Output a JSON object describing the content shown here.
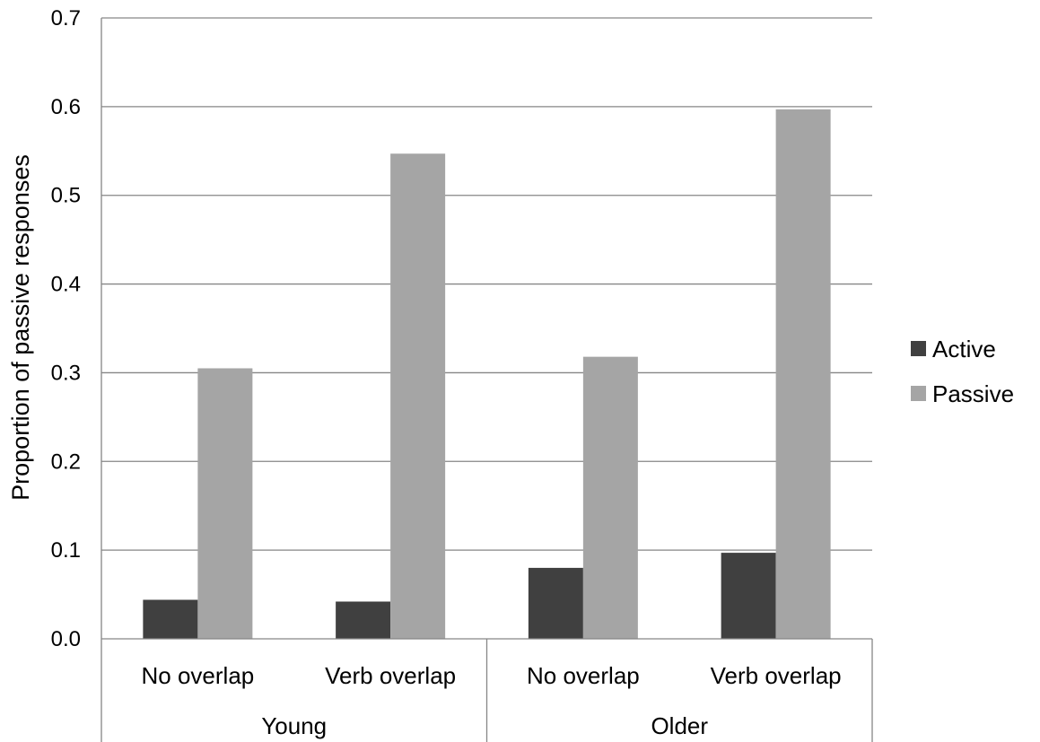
{
  "chart_data": {
    "type": "bar",
    "title": "",
    "xlabel": "",
    "ylabel": "Proportion of passive responses",
    "ylim": [
      0,
      0.7
    ],
    "yticks": [
      "0.0",
      "0.1",
      "0.2",
      "0.3",
      "0.4",
      "0.5",
      "0.6",
      "0.7"
    ],
    "grid": true,
    "legend_position": "right",
    "groups": [
      {
        "label": "Young",
        "categories": [
          "No overlap",
          "Verb overlap"
        ]
      },
      {
        "label": "Older",
        "categories": [
          "No overlap",
          "Verb overlap"
        ]
      }
    ],
    "categories": [
      "No overlap",
      "Verb overlap",
      "No overlap",
      "Verb overlap"
    ],
    "series": [
      {
        "name": "Active",
        "color": "#404040",
        "values": [
          0.044,
          0.042,
          0.08,
          0.097
        ]
      },
      {
        "name": "Passive",
        "color": "#a5a5a5",
        "values": [
          0.305,
          0.547,
          0.318,
          0.597
        ]
      }
    ]
  }
}
